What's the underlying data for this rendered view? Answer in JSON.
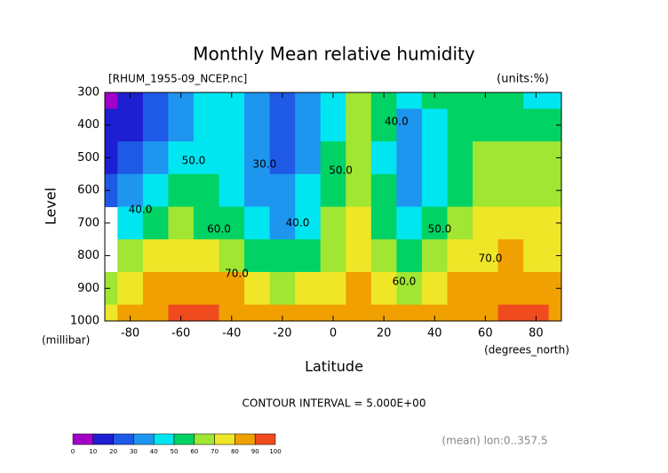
{
  "chart_data": {
    "type": "contour",
    "title": "Monthly Mean relative humidity",
    "subtitle": "[RHUM_1955-09_NCEP.nc]",
    "units": "(units:%)",
    "x_label": "Latitude",
    "x_unit": "(degrees_north)",
    "y_label": "Level",
    "y_unit": "(millibar)",
    "footer": "CONTOUR INTERVAL = 5.000E+00",
    "note": "(mean) lon:0..357.5",
    "x": [
      -90,
      -80,
      -70,
      -60,
      -50,
      -40,
      -30,
      -20,
      -10,
      0,
      10,
      20,
      30,
      40,
      50,
      60,
      70,
      80,
      90
    ],
    "y": [
      300,
      400,
      500,
      600,
      700,
      800,
      900,
      1000
    ],
    "z": [
      [
        5,
        15,
        25,
        35,
        40,
        40,
        30,
        25,
        35,
        45,
        65,
        55,
        45,
        50,
        55,
        55,
        55,
        45,
        45
      ],
      [
        10,
        15,
        25,
        35,
        40,
        40,
        30,
        20,
        30,
        45,
        60,
        50,
        35,
        40,
        50,
        55,
        55,
        55,
        50
      ],
      [
        15,
        25,
        35,
        45,
        45,
        40,
        30,
        25,
        35,
        50,
        60,
        45,
        35,
        40,
        50,
        60,
        65,
        60,
        60
      ],
      [
        20,
        35,
        40,
        50,
        50,
        45,
        35,
        30,
        40,
        55,
        65,
        50,
        35,
        40,
        55,
        65,
        65,
        65,
        65
      ],
      [
        null,
        45,
        55,
        60,
        55,
        50,
        40,
        35,
        45,
        60,
        70,
        55,
        40,
        50,
        65,
        70,
        70,
        70,
        70
      ],
      [
        null,
        60,
        70,
        75,
        75,
        65,
        55,
        50,
        55,
        65,
        75,
        60,
        55,
        60,
        75,
        75,
        80,
        75,
        75
      ],
      [
        65,
        75,
        80,
        85,
        85,
        80,
        70,
        65,
        70,
        75,
        80,
        70,
        65,
        70,
        80,
        80,
        80,
        80,
        80
      ],
      [
        75,
        80,
        85,
        90,
        90,
        85,
        80,
        80,
        80,
        85,
        85,
        80,
        80,
        80,
        85,
        85,
        90,
        90,
        85
      ]
    ],
    "levels": [
      0,
      10,
      20,
      30,
      40,
      50,
      60,
      70,
      80,
      90,
      100
    ],
    "colors": [
      "#a000c8",
      "#1e1ed2",
      "#1e5ae6",
      "#1e96f0",
      "#00e6f0",
      "#00d264",
      "#a0e632",
      "#f0e628",
      "#f0a000",
      "#f04b1e"
    ],
    "contour_labels": [
      {
        "value": 50,
        "label": "50.0",
        "x": -55,
        "y": 510
      },
      {
        "value": 40,
        "label": "40.0",
        "x": -76,
        "y": 660
      },
      {
        "value": 30,
        "label": "30.0",
        "x": -27,
        "y": 520
      },
      {
        "value": 60,
        "label": "60.0",
        "x": -45,
        "y": 720
      },
      {
        "value": 40,
        "label": "40.0",
        "x": -14,
        "y": 700
      },
      {
        "value": 70,
        "label": "70.0",
        "x": -38,
        "y": 855
      },
      {
        "value": 50,
        "label": "50.0",
        "x": 3,
        "y": 540
      },
      {
        "value": 40,
        "label": "40.0",
        "x": 25,
        "y": 390
      },
      {
        "value": 60,
        "label": "60.0",
        "x": 28,
        "y": 880
      },
      {
        "value": 50,
        "label": "50.0",
        "x": 42,
        "y": 720
      },
      {
        "value": 70,
        "label": "70.0",
        "x": 62,
        "y": 810
      }
    ],
    "xlim": [
      -90,
      90
    ],
    "ylim": [
      1000,
      300
    ],
    "xticks": [
      -80,
      -60,
      -40,
      -20,
      0,
      20,
      40,
      60,
      80
    ],
    "yticks": [
      300,
      400,
      500,
      600,
      700,
      800,
      900,
      1000
    ]
  }
}
